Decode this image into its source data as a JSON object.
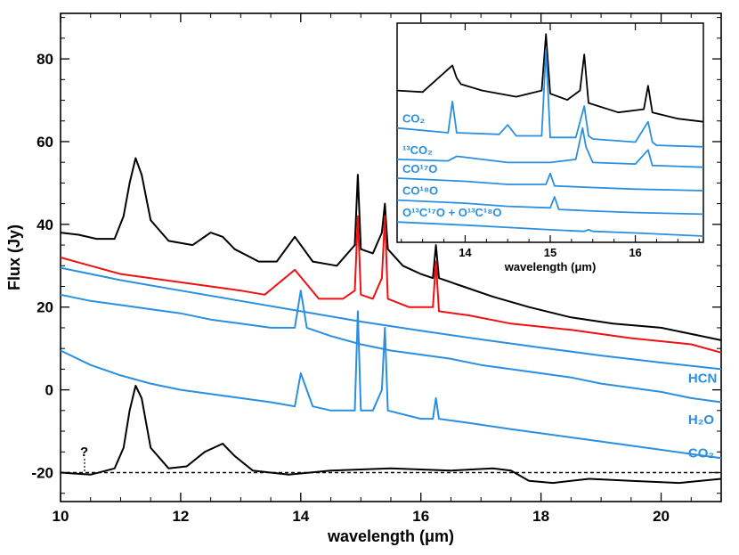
{
  "chart_data": [
    {
      "type": "line",
      "xlabel": "wavelength (μm)",
      "ylabel": "Flux (Jy)",
      "xlim": [
        10,
        21
      ],
      "ylim": [
        -27,
        91
      ],
      "xticks": [
        10,
        12,
        14,
        16,
        18,
        20
      ],
      "yticks": [
        -20,
        0,
        20,
        40,
        60,
        80
      ],
      "question_mark": "?",
      "series": [
        {
          "key": "observed",
          "color": "#000000",
          "x": [
            10,
            10.3,
            10.6,
            10.9,
            11.05,
            11.15,
            11.25,
            11.35,
            11.5,
            11.8,
            12.2,
            12.5,
            12.7,
            12.9,
            13.3,
            13.6,
            13.9,
            14.2,
            14.6,
            14.9,
            14.95,
            15.0,
            15.2,
            15.35,
            15.4,
            15.45,
            15.7,
            16.0,
            16.2,
            16.25,
            16.3,
            16.7,
            17.2,
            17.8,
            18.5,
            19.2,
            20,
            20.5,
            21
          ],
          "y": [
            38,
            37.5,
            36.5,
            36.5,
            42,
            50,
            56,
            52,
            41,
            36,
            35,
            38,
            37,
            34,
            31,
            31,
            37,
            31,
            30,
            35,
            52,
            34,
            33,
            38,
            45,
            34,
            30,
            28,
            27,
            35,
            27,
            25,
            22.5,
            20,
            17.5,
            16,
            15,
            13.5,
            12
          ]
        },
        {
          "key": "model-total",
          "color": "#ee1111",
          "x": [
            10,
            10.5,
            11,
            11.5,
            12,
            12.5,
            13,
            13.4,
            13.9,
            14.3,
            14.7,
            14.9,
            14.95,
            15.0,
            15.2,
            15.35,
            15.4,
            15.45,
            15.8,
            16.2,
            16.25,
            16.3,
            16.8,
            17.5,
            18.5,
            19.5,
            20.5,
            21
          ],
          "y": [
            32,
            30,
            28,
            27,
            26,
            25,
            24,
            23,
            29,
            22,
            22,
            24,
            42,
            23,
            22,
            27,
            42,
            22,
            20,
            20,
            31,
            19,
            18,
            16,
            14.5,
            12.5,
            11,
            9
          ]
        },
        {
          "key": "HCN",
          "color": "#2b8fe0",
          "x": [
            10,
            11,
            12,
            13,
            14,
            15,
            16,
            17,
            18,
            19,
            20,
            21
          ],
          "y": [
            29.5,
            26.5,
            24,
            21.5,
            19,
            16.5,
            14.3,
            12.2,
            10.2,
            8.3,
            6.6,
            5
          ]
        },
        {
          "key": "H2O",
          "color": "#2b8fe0",
          "x": [
            10,
            10.5,
            11,
            11.5,
            12,
            12.5,
            13,
            13.5,
            13.9,
            14.0,
            14.1,
            14.5,
            15,
            15.5,
            16,
            16.5,
            17,
            17.5,
            18,
            18.5,
            19,
            19.5,
            20,
            20.5,
            21
          ],
          "y": [
            23,
            21.5,
            20.5,
            19.5,
            18.5,
            17,
            16,
            15,
            15,
            24,
            15,
            13,
            11,
            9.5,
            8.5,
            7.5,
            6,
            5,
            4,
            3,
            1.5,
            0.5,
            -0.5,
            -2,
            -3
          ]
        },
        {
          "key": "CO2",
          "color": "#2b8fe0",
          "x": [
            10,
            10.5,
            11,
            11.5,
            12,
            12.5,
            13,
            13.5,
            13.9,
            14.0,
            14.2,
            14.5,
            14.9,
            14.95,
            15.0,
            15.2,
            15.35,
            15.4,
            15.45,
            16.0,
            16.2,
            16.25,
            16.3,
            16.8,
            17.5,
            18.5,
            19.5,
            20.5,
            21
          ],
          "y": [
            9.5,
            6,
            3.5,
            1.5,
            0,
            -1,
            -2,
            -3,
            -4,
            4,
            -4,
            -5,
            -5,
            19,
            -5,
            -5,
            0,
            15,
            -5,
            -7,
            -7,
            -2,
            -7,
            -8,
            -9.5,
            -11.5,
            -13.5,
            -15.5,
            -16.5
          ]
        },
        {
          "key": "residual",
          "color": "#000000",
          "x": [
            10,
            10.5,
            10.9,
            11.05,
            11.15,
            11.25,
            11.35,
            11.5,
            11.8,
            12.1,
            12.4,
            12.7,
            12.9,
            13.2,
            13.8,
            14.5,
            15.5,
            16.5,
            17.2,
            17.5,
            17.8,
            18.2,
            18.8,
            19.5,
            20.3,
            21
          ],
          "y": [
            -20,
            -20.5,
            -19,
            -14,
            -5,
            1,
            -2,
            -14,
            -19,
            -18.5,
            -15,
            -13,
            -16,
            -19.5,
            -20.5,
            -19.5,
            -19,
            -19.5,
            -19,
            -19.5,
            -22,
            -22.5,
            -21.5,
            -22,
            -22.5,
            -21.5
          ]
        },
        {
          "key": "baseline",
          "color": "#000000",
          "dashed": true,
          "x": [
            10,
            21
          ],
          "y": [
            -20,
            -20
          ]
        }
      ],
      "labels": {
        "HCN": "HCN",
        "H2O": "H₂O",
        "CO2": "CO₂"
      }
    },
    {
      "type": "line",
      "inset": true,
      "xlabel": "wavelength (μm)",
      "xlim": [
        13.2,
        16.8
      ],
      "xticks": [
        14,
        15,
        16
      ],
      "series": [
        {
          "key": "inset-observed",
          "color": "#000000",
          "x": [
            13.2,
            13.5,
            13.85,
            13.9,
            13.95,
            14.2,
            14.6,
            14.9,
            14.95,
            15.0,
            15.2,
            15.35,
            15.4,
            15.45,
            15.8,
            16.1,
            16.15,
            16.2,
            16.5,
            16.8
          ],
          "y": [
            0.62,
            0.61,
            0.78,
            0.7,
            0.66,
            0.62,
            0.58,
            0.62,
            0.98,
            0.6,
            0.56,
            0.62,
            0.85,
            0.54,
            0.48,
            0.5,
            0.65,
            0.48,
            0.44,
            0.42
          ],
          "label": ""
        },
        {
          "key": "inset-co2",
          "color": "#2b8fe0",
          "x": [
            13.2,
            13.8,
            13.85,
            13.9,
            14.4,
            14.5,
            14.6,
            14.9,
            14.95,
            15.0,
            15.3,
            15.4,
            15.45,
            15.5,
            16.0,
            16.15,
            16.2,
            16.25,
            16.8
          ],
          "y": [
            0.38,
            0.35,
            0.55,
            0.35,
            0.34,
            0.4,
            0.33,
            0.33,
            0.88,
            0.32,
            0.32,
            0.52,
            0.33,
            0.31,
            0.29,
            0.42,
            0.29,
            0.27,
            0.26
          ],
          "label": "CO₂"
        },
        {
          "key": "inset-13co2",
          "color": "#2b8fe0",
          "x": [
            13.2,
            13.8,
            13.9,
            14.5,
            15.0,
            15.3,
            15.38,
            15.42,
            15.5,
            16.0,
            16.15,
            16.2,
            16.25,
            16.8
          ],
          "y": [
            0.18,
            0.17,
            0.2,
            0.16,
            0.16,
            0.18,
            0.38,
            0.26,
            0.16,
            0.15,
            0.24,
            0.14,
            0.14,
            0.13
          ],
          "label": "¹³CO₂"
        },
        {
          "key": "inset-co17o",
          "color": "#2b8fe0",
          "x": [
            13.2,
            14.0,
            14.5,
            14.95,
            15.0,
            15.05,
            15.5,
            16.0,
            16.8
          ],
          "y": [
            0.06,
            0.04,
            0.02,
            0.02,
            0.09,
            0.01,
            0.0,
            -0.01,
            -0.02
          ],
          "label": "CO¹⁷O"
        },
        {
          "key": "inset-co18o",
          "color": "#2b8fe0",
          "x": [
            13.2,
            14.0,
            14.5,
            15.0,
            15.05,
            15.1,
            15.5,
            16.0,
            16.8
          ],
          "y": [
            -0.08,
            -0.1,
            -0.12,
            -0.13,
            -0.06,
            -0.14,
            -0.15,
            -0.16,
            -0.17
          ],
          "label": "CO¹⁸O"
        },
        {
          "key": "inset-o13c17o",
          "color": "#2b8fe0",
          "x": [
            13.2,
            14.0,
            15.0,
            15.4,
            15.45,
            15.5,
            16.0,
            16.8
          ],
          "y": [
            -0.22,
            -0.24,
            -0.27,
            -0.28,
            -0.27,
            -0.28,
            -0.29,
            -0.31
          ],
          "label": "O¹³C¹⁷O + O¹³C¹⁸O"
        }
      ]
    }
  ]
}
